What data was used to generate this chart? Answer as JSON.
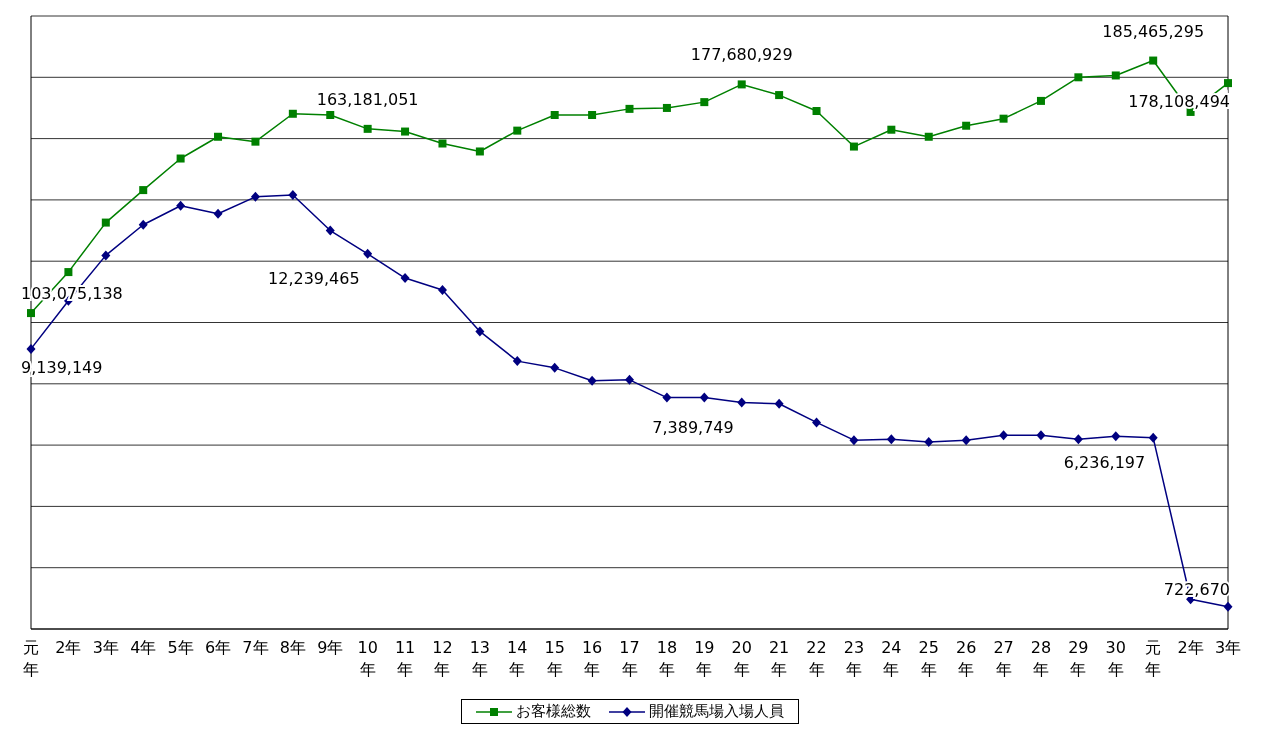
{
  "chart_data": {
    "type": "line",
    "categories": [
      "元年",
      "2年",
      "3年",
      "4年",
      "5年",
      "6年",
      "7年",
      "8年",
      "9年",
      "10年",
      "11年",
      "12年",
      "13年",
      "14年",
      "15年",
      "16年",
      "17年",
      "18年",
      "19年",
      "20年",
      "21年",
      "22年",
      "23年",
      "24年",
      "25年",
      "26年",
      "27年",
      "28年",
      "29年",
      "30年",
      "元年",
      "2年",
      "3年"
    ],
    "series": [
      {
        "name": "お客様総数",
        "color": "#008000",
        "marker": "square",
        "values": [
          103075138,
          116450000,
          132600000,
          143200000,
          153500000,
          160600000,
          159000000,
          168100000,
          167700000,
          163181051,
          162300000,
          158400000,
          155800000,
          162600000,
          167700000,
          167700000,
          169700000,
          170000000,
          171900000,
          177680929,
          174200000,
          169000000,
          157400000,
          162900000,
          160600000,
          164200000,
          166500000,
          172300000,
          180000000,
          180600000,
          185465295,
          168700000,
          178108494
        ],
        "value_labels": [
          "103,075,138",
          null,
          null,
          null,
          null,
          null,
          null,
          null,
          null,
          "163,181,051",
          null,
          null,
          null,
          null,
          null,
          null,
          null,
          null,
          null,
          "177,680,929",
          null,
          null,
          null,
          null,
          null,
          null,
          null,
          null,
          null,
          null,
          "185,465,295",
          null,
          "178,108,494"
        ]
      },
      {
        "name": "開催競馬場入場人員",
        "color": "#000080",
        "marker": "diamond",
        "axis": "y2",
        "values": [
          9139149,
          10710000,
          12190000,
          13190000,
          13810000,
          13550000,
          14100000,
          14160000,
          13000000,
          12239465,
          11450000,
          11060000,
          9710000,
          8740000,
          8520000,
          8100000,
          8130000,
          7550000,
          7550000,
          7389749,
          7350000,
          6740000,
          6160000,
          6190000,
          6100000,
          6160000,
          6320000,
          6320000,
          6190000,
          6290000,
          6236197,
          970000,
          722670
        ],
        "value_labels": [
          "9,139,149",
          null,
          null,
          null,
          null,
          null,
          null,
          null,
          null,
          "12,239,465",
          null,
          null,
          null,
          null,
          null,
          null,
          null,
          null,
          null,
          "7,389,749",
          null,
          null,
          null,
          null,
          null,
          null,
          null,
          null,
          null,
          null,
          "6,236,197",
          null,
          "722,670"
        ]
      }
    ],
    "ylim": [
      0,
      200000000
    ],
    "yticks": [
      {
        "value": 0,
        "label": null
      },
      {
        "value": 20000000,
        "label": null
      },
      {
        "value": 40000000,
        "label": null
      },
      {
        "value": 60000000,
        "label": null
      },
      {
        "value": 80000000,
        "label": null
      },
      {
        "value": 100000000,
        "label": null
      },
      {
        "value": 120000000,
        "label": null
      },
      {
        "value": 140000000,
        "label": null
      },
      {
        "value": 160000000,
        "label": null
      },
      {
        "value": 180000000,
        "label": null
      },
      {
        "value": 200000000,
        "label": null
      }
    ],
    "y2lim": [
      0,
      20000000
    ],
    "grid": "y",
    "legend": "bottom",
    "tick_labels": "x",
    "line_style": "solid"
  }
}
